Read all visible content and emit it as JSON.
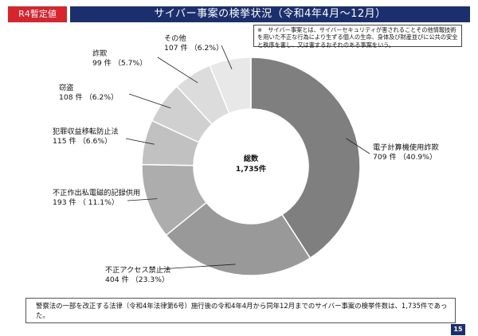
{
  "header": {
    "tag": "R4暫定値",
    "title": "サイバー事案の検挙状況（令和4年4月～12月）"
  },
  "note": "※　サイバー事案とは、サイバーセキュリティが害されることその他情報技術を用いた不正な行為により生ずる個人の生命、身体及び財産並びに公共の安全と秩序を害し、又は害するおそれのある事案をいう。",
  "chart_data": {
    "type": "pie",
    "center_label": "総数",
    "total_label": "1,735件",
    "slices": [
      {
        "name": "電子計算機使用詐欺",
        "value": 709,
        "value_label": "709 件 （40.9%）",
        "color": "#7f7f7f"
      },
      {
        "name": "不正アクセス禁止法",
        "value": 404,
        "value_label": "404 件 （23.3%）",
        "color": "#999999"
      },
      {
        "name": "不正作出私電磁的記録供用",
        "value": 193,
        "value_label": "193 件 （ 11.1%）",
        "color": "#adadad"
      },
      {
        "name": "犯罪収益移転防止法",
        "value": 115,
        "value_label": "115 件 （6.6%）",
        "color": "#c1c1c1"
      },
      {
        "name": "窃盗",
        "value": 108,
        "value_label": "108 件 （6.2%）",
        "color": "#d0d0d0"
      },
      {
        "name": "詐欺",
        "value": 99,
        "value_label": "99 件 （5.7%）",
        "color": "#dcdcdc"
      },
      {
        "name": "その他",
        "value": 107,
        "value_label": "107 件 （6.2%）",
        "color": "#e8e8e8"
      }
    ]
  },
  "summary": "警察法の一部を改正する法律（令和4年法律第6号）施行後の令和4年4月から同年12月までのサイバー事案の検挙件数は、1,735件であった。",
  "page_number": "15"
}
